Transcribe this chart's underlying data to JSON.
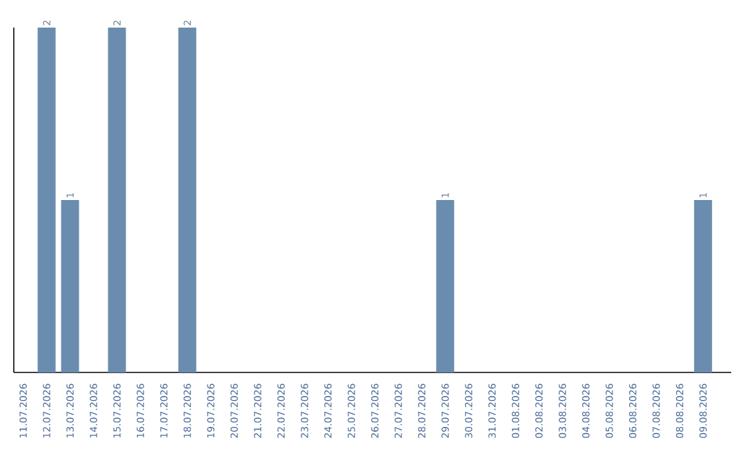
{
  "chart_data": {
    "type": "bar",
    "categories": [
      "11.07.2026",
      "12.07.2026",
      "13.07.2026",
      "14.07.2026",
      "15.07.2026",
      "16.07.2026",
      "17.07.2026",
      "18.07.2026",
      "19.07.2026",
      "20.07.2026",
      "21.07.2026",
      "22.07.2026",
      "23.07.2026",
      "24.07.2026",
      "25.07.2026",
      "26.07.2026",
      "27.07.2026",
      "28.07.2026",
      "29.07.2026",
      "30.07.2026",
      "31.07.2026",
      "01.08.2026",
      "02.08.2026",
      "03.08.2026",
      "04.08.2026",
      "05.08.2026",
      "06.08.2026",
      "07.08.2026",
      "08.08.2026",
      "09.08.2026"
    ],
    "values": [
      0,
      2,
      1,
      0,
      2,
      0,
      0,
      2,
      0,
      0,
      0,
      0,
      0,
      0,
      0,
      0,
      0,
      0,
      1,
      0,
      0,
      0,
      0,
      0,
      0,
      0,
      0,
      0,
      0,
      1
    ],
    "value_labels": [
      null,
      "2",
      "1",
      null,
      "2",
      null,
      null,
      "2",
      null,
      null,
      null,
      null,
      null,
      null,
      null,
      null,
      null,
      null,
      "1",
      null,
      null,
      null,
      null,
      null,
      null,
      null,
      null,
      null,
      null,
      "1"
    ],
    "color": "#6a8caf",
    "tick_labels": "x"
  }
}
